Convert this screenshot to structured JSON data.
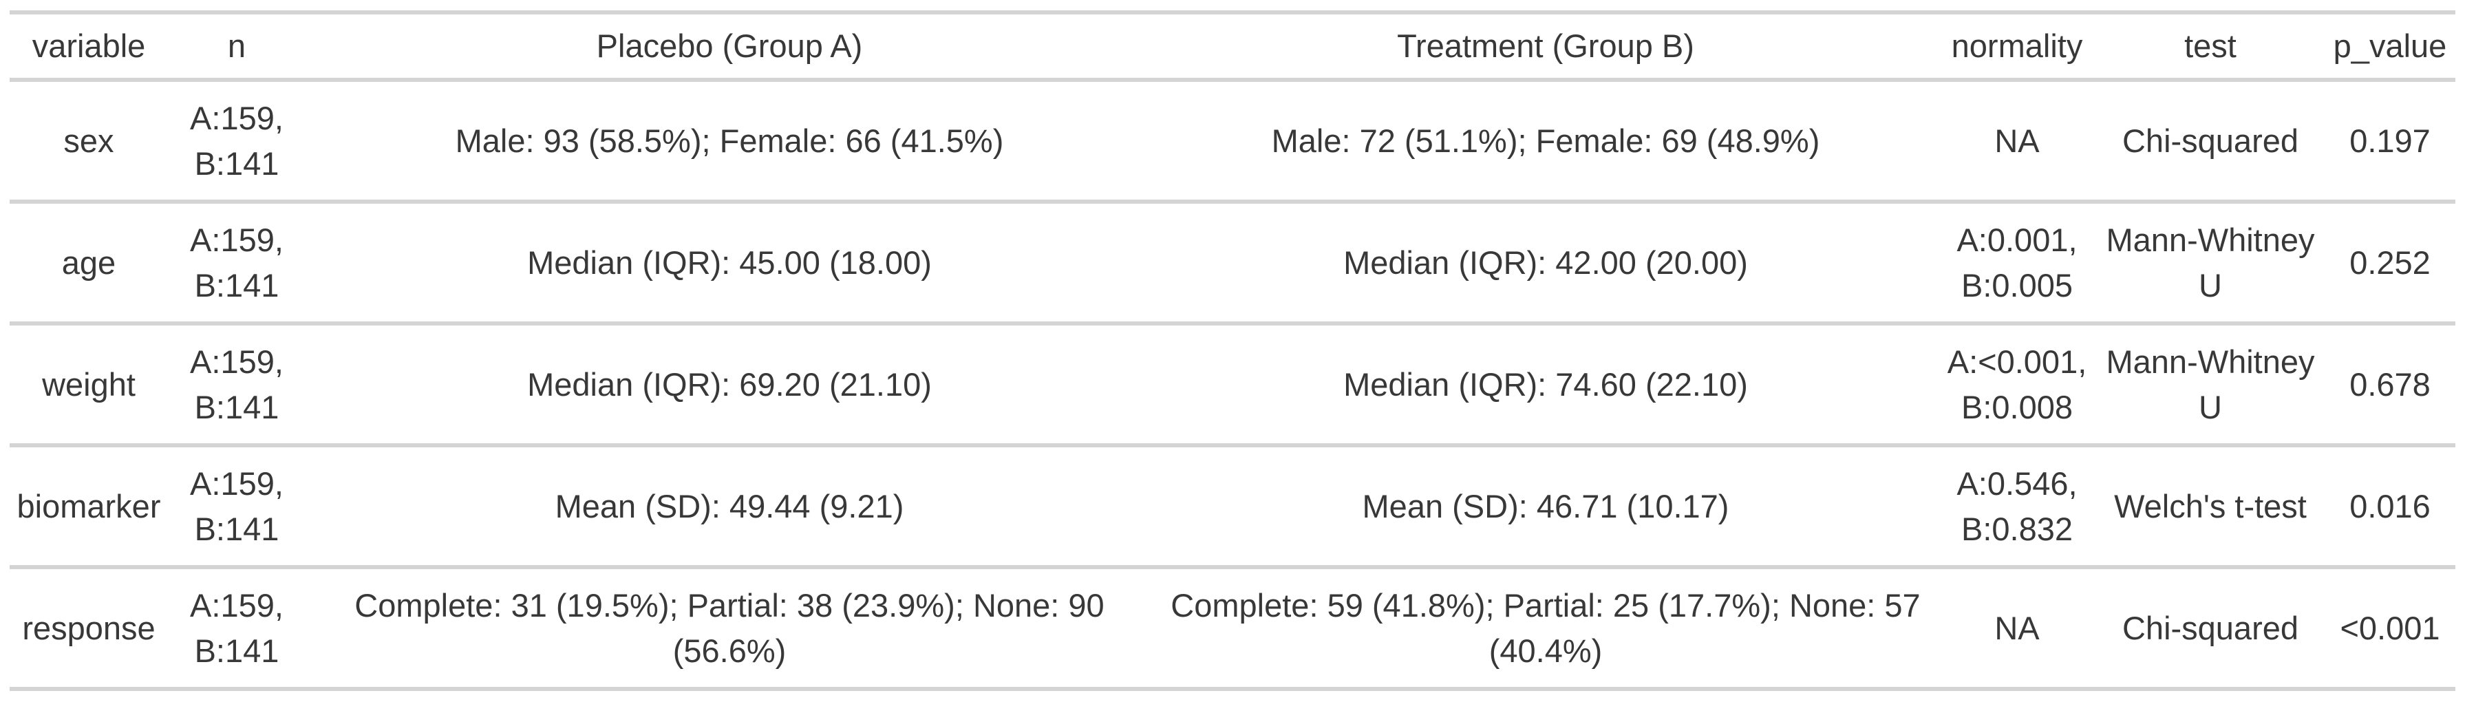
{
  "chart_data": {
    "type": "table",
    "title": "",
    "columns": [
      "variable",
      "n",
      "Placebo (Group A)",
      "Treatment (Group B)",
      "normality",
      "test",
      "p_value"
    ],
    "rows": [
      [
        "sex",
        "A:159, B:141",
        "Male: 93 (58.5%); Female: 66 (41.5%)",
        "Male: 72 (51.1%); Female: 69 (48.9%)",
        "NA",
        "Chi-squared",
        "0.197"
      ],
      [
        "age",
        "A:159, B:141",
        "Median (IQR): 45.00 (18.00)",
        "Median (IQR): 42.00 (20.00)",
        "A:0.001, B:0.005",
        "Mann-Whitney U",
        "0.252"
      ],
      [
        "weight",
        "A:159, B:141",
        "Median (IQR): 69.20 (21.10)",
        "Median (IQR): 74.60 (22.10)",
        "A:<0.001, B:0.008",
        "Mann-Whitney U",
        "0.678"
      ],
      [
        "biomarker",
        "A:159, B:141",
        "Mean (SD): 49.44 (9.21)",
        "Mean (SD): 46.71 (10.17)",
        "A:0.546, B:0.832",
        "Welch's t-test",
        "0.016"
      ],
      [
        "response",
        "A:159, B:141",
        "Complete: 31 (19.5%); Partial: 38 (23.9%); None: 90 (56.6%)",
        "Complete: 59 (41.8%); Partial: 25 (17.7%); None: 57 (40.4%)",
        "NA",
        "Chi-squared",
        "<0.001"
      ]
    ],
    "layout": {
      "grid": "horizontal-rules-only",
      "alignment": "center"
    }
  },
  "colors": {
    "background": "#ffffff",
    "divider": "#d4d4d4",
    "text": "#383838"
  }
}
